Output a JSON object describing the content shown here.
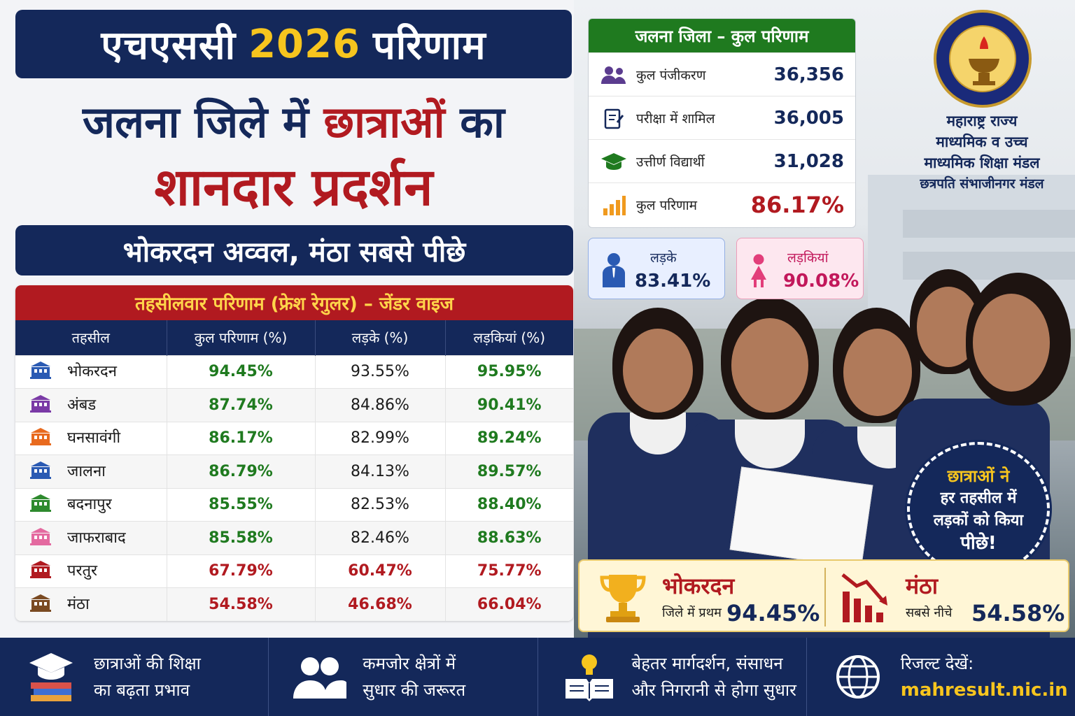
{
  "title": {
    "pre": "एचएससी",
    "year": "2026",
    "post": "परिणाम"
  },
  "headline": {
    "part1": "जलना जिले में",
    "highlight": "छात्राओं",
    "part2": "का",
    "line2": "शानदार प्रदर्शन"
  },
  "subheadline": "भोकरदन अव्वल, मंठा सबसे पीछे",
  "table": {
    "title": "तहसीलवार परिणाम (फ्रेश रेगुलर) – जेंडर वाइज",
    "headers": [
      "तहसील",
      "कुल परिणाम (%)",
      "लड़के (%)",
      "लड़कियां (%)"
    ],
    "rows": [
      {
        "name": "भोकरदन",
        "total": "94.45%",
        "boys": "93.55%",
        "girls": "95.95%",
        "icon_color": "#2a5ab3"
      },
      {
        "name": "अंबड",
        "total": "87.74%",
        "boys": "84.86%",
        "girls": "90.41%",
        "icon_color": "#7a3aa6"
      },
      {
        "name": "घनसावंगी",
        "total": "86.17%",
        "boys": "82.99%",
        "girls": "89.24%",
        "icon_color": "#e86a1e"
      },
      {
        "name": "जालना",
        "total": "86.79%",
        "boys": "84.13%",
        "girls": "89.57%",
        "icon_color": "#2a5ab3"
      },
      {
        "name": "बदनापुर",
        "total": "85.55%",
        "boys": "82.53%",
        "girls": "88.40%",
        "icon_color": "#2e8a2e"
      },
      {
        "name": "जाफराबाद",
        "total": "85.58%",
        "boys": "82.46%",
        "girls": "88.63%",
        "icon_color": "#e46aa0"
      },
      {
        "name": "परतुर",
        "total": "67.79%",
        "boys": "60.47%",
        "girls": "75.77%",
        "icon_color": "#b11a20"
      },
      {
        "name": "मंठा",
        "total": "54.58%",
        "boys": "46.68%",
        "girls": "66.04%",
        "icon_color": "#7a4a22"
      }
    ]
  },
  "summary": {
    "title": "जलना जिला – कुल परिणाम",
    "items": [
      {
        "label": "कुल पंजीकरण",
        "value": "36,356",
        "icon": "people-icon"
      },
      {
        "label": "परीक्षा में शामिल",
        "value": "36,005",
        "icon": "clipboard-icon"
      },
      {
        "label": "उत्तीर्ण विद्यार्थी",
        "value": "31,028",
        "icon": "graduation-cap-icon"
      },
      {
        "label": "कुल परिणाम",
        "value": "86.17%",
        "icon": "bar-chart-icon"
      }
    ],
    "boys": {
      "label": "लड़के",
      "value": "83.41%"
    },
    "girls": {
      "label": "लड़कियां",
      "value": "90.08%"
    }
  },
  "board": {
    "line1": "महाराष्ट्र राज्य",
    "line2": "माध्यमिक व उच्च",
    "line3": "माध्यमिक शिक्षा मंडल",
    "line4": "छत्रपति संभाजीनगर मंडल"
  },
  "callout": {
    "line1": "छात्राओं ने",
    "line2": "हर तहसील में",
    "line3": "लड़कों को किया",
    "line4": "पीछे!"
  },
  "highlight": {
    "top": {
      "name": "भोकरदन",
      "note": "जिले में प्रथम",
      "value": "94.45%"
    },
    "bottom": {
      "name": "मंठा",
      "note": "सबसे नीचे",
      "value": "54.58%"
    }
  },
  "footer": [
    {
      "line1": "छात्राओं की शिक्षा",
      "line2": "का बढ़ता प्रभाव",
      "icon": "books-icon"
    },
    {
      "line1": "कमजोर क्षेत्रों में",
      "line2": "सुधार की जरूरत",
      "icon": "users-icon"
    },
    {
      "line1": "बेहतर मार्गदर्शन, संसाधन",
      "line2": "और निगरानी से होगा सुधार",
      "icon": "book-lightbulb-icon"
    },
    {
      "line1": "रिजल्ट देखें:",
      "line2": "mahresult.nic.in",
      "icon": "globe-icon"
    }
  ],
  "colors": {
    "navy": "#14285a",
    "red": "#b11a20",
    "green": "#1f7a1f",
    "gold": "#f7c51e"
  }
}
